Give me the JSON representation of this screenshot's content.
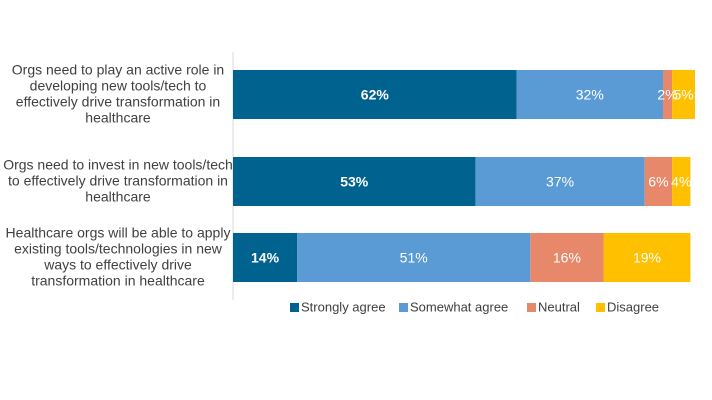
{
  "chart_data": {
    "type": "bar",
    "orientation": "horizontal",
    "stacked": true,
    "categories": [
      [
        "Orgs need to play an active role in",
        "developing new tools/tech to",
        "effectively drive transformation in",
        "healthcare"
      ],
      [
        "Orgs need to invest in new tools/tech",
        "to effectively drive transformation in",
        "healthcare"
      ],
      [
        "Healthcare orgs will be able to apply",
        "existing tools/technologies in new",
        "ways to effectively drive",
        "transformation in healthcare"
      ]
    ],
    "series": [
      {
        "name": "Strongly agree",
        "color": "#00628E",
        "values": [
          62,
          53,
          14
        ],
        "labels": [
          "62%",
          "53%",
          "14%"
        ],
        "bold_labels": true
      },
      {
        "name": "Somewhat agree",
        "color": "#5B9BD5",
        "values": [
          32,
          37,
          51
        ],
        "labels": [
          "32%",
          "37%",
          "51%"
        ]
      },
      {
        "name": "Neutral",
        "color": "#E8886B",
        "values": [
          2,
          6,
          16
        ],
        "labels": [
          "2%",
          "6%",
          "16%"
        ]
      },
      {
        "name": "Disagree",
        "color": "#FFC000",
        "values": [
          5,
          4,
          19
        ],
        "labels": [
          "5%",
          "4%",
          "19%"
        ]
      }
    ],
    "xlim": [
      0,
      101
    ],
    "legend_position": "bottom",
    "grid": false
  }
}
